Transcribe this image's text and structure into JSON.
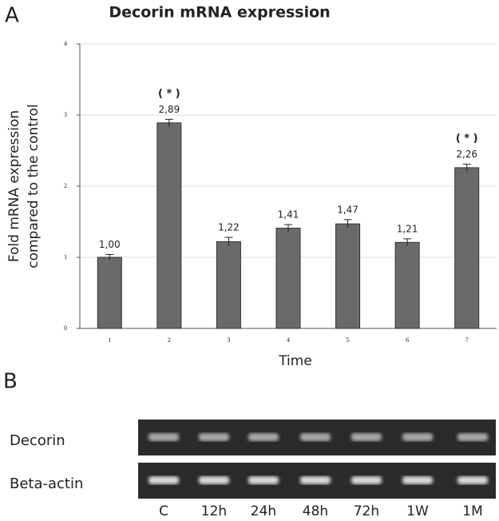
{
  "panel_a": {
    "label": "A"
  },
  "chart_data": {
    "type": "bar",
    "title": "Decorin mRNA expression",
    "categories": [
      "1",
      "2",
      "3",
      "4",
      "5",
      "6",
      "7"
    ],
    "values": [
      1.0,
      2.89,
      1.22,
      1.41,
      1.47,
      1.21,
      2.26
    ],
    "value_labels": [
      "1,00",
      "2,89",
      "1,22",
      "1,41",
      "1,47",
      "1,21",
      "2,26"
    ],
    "errors": [
      0.04,
      0.05,
      0.06,
      0.05,
      0.06,
      0.05,
      0.05
    ],
    "annotations": [
      null,
      "( * )",
      null,
      null,
      null,
      null,
      "( * )"
    ],
    "color": "#6a6a6a",
    "ylabel": [
      "Fold mRNA expression",
      "compared to the control"
    ],
    "xlabel": "Time",
    "ylim": [
      0,
      4
    ],
    "yticks": [
      0,
      1,
      2,
      3,
      4
    ],
    "grid": true
  },
  "panel_b": {
    "label": "B",
    "rows": [
      "Decorin",
      "Beta-actin"
    ],
    "lanes": [
      "C",
      "12h",
      "24h",
      "48h",
      "72h",
      "1W",
      "1M"
    ]
  }
}
